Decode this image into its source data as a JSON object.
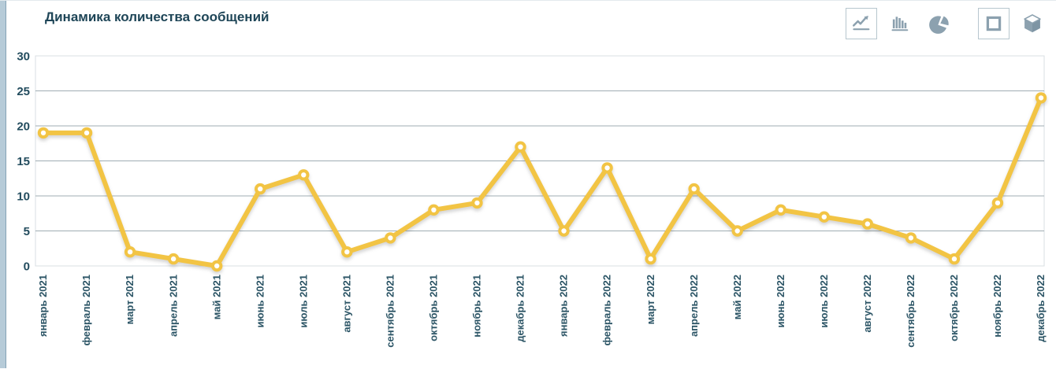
{
  "header": {
    "title": "Динамика количества сообщений"
  },
  "toolbar": {
    "chart_type_buttons": [
      {
        "name": "line-chart",
        "selected": true
      },
      {
        "name": "bar-chart",
        "selected": false
      },
      {
        "name": "pie-chart",
        "selected": false
      }
    ],
    "view_mode_buttons": [
      {
        "name": "2d-view",
        "selected": true
      },
      {
        "name": "3d-view",
        "selected": false
      }
    ]
  },
  "chart_data": {
    "type": "line",
    "title": "Динамика количества сообщений",
    "categories": [
      "январь 2021",
      "февраль 2021",
      "март 2021",
      "апрель 2021",
      "май 2021",
      "июнь 2021",
      "июль 2021",
      "август 2021",
      "сентябрь 2021",
      "октябрь 2021",
      "ноябрь 2021",
      "декабрь 2021",
      "январь 2022",
      "февраль 2022",
      "март 2022",
      "апрель 2022",
      "май 2022",
      "июнь 2022",
      "июль 2022",
      "август 2022",
      "сентябрь 2022",
      "октябрь 2022",
      "ноябрь 2022",
      "декабрь 2022"
    ],
    "values": [
      19,
      19,
      2,
      1,
      0,
      11,
      13,
      2,
      4,
      8,
      9,
      17,
      5,
      14,
      1,
      11,
      5,
      8,
      7,
      6,
      4,
      1,
      9,
      24
    ],
    "xlabel": "",
    "ylabel": "",
    "ylim": [
      0,
      30
    ],
    "yticks": [
      0,
      5,
      10,
      15,
      20,
      25,
      30
    ],
    "grid": true,
    "legend": false,
    "line_color": "#F2C444",
    "marker": {
      "shape": "circle",
      "fill": "#FFFFFF",
      "stroke": "#F2C444"
    }
  },
  "colors": {
    "title": "#1E4557",
    "axis_label": "#2C5566",
    "grid": "#9FADB3",
    "plot_border": "#D9DFE3",
    "icon": "#8CA1AF",
    "icon_dark": "#7E95A4",
    "icon_box_border": "#B7C6CE",
    "left_strip": "#B6CBD8",
    "background": "#FFFFFF"
  }
}
